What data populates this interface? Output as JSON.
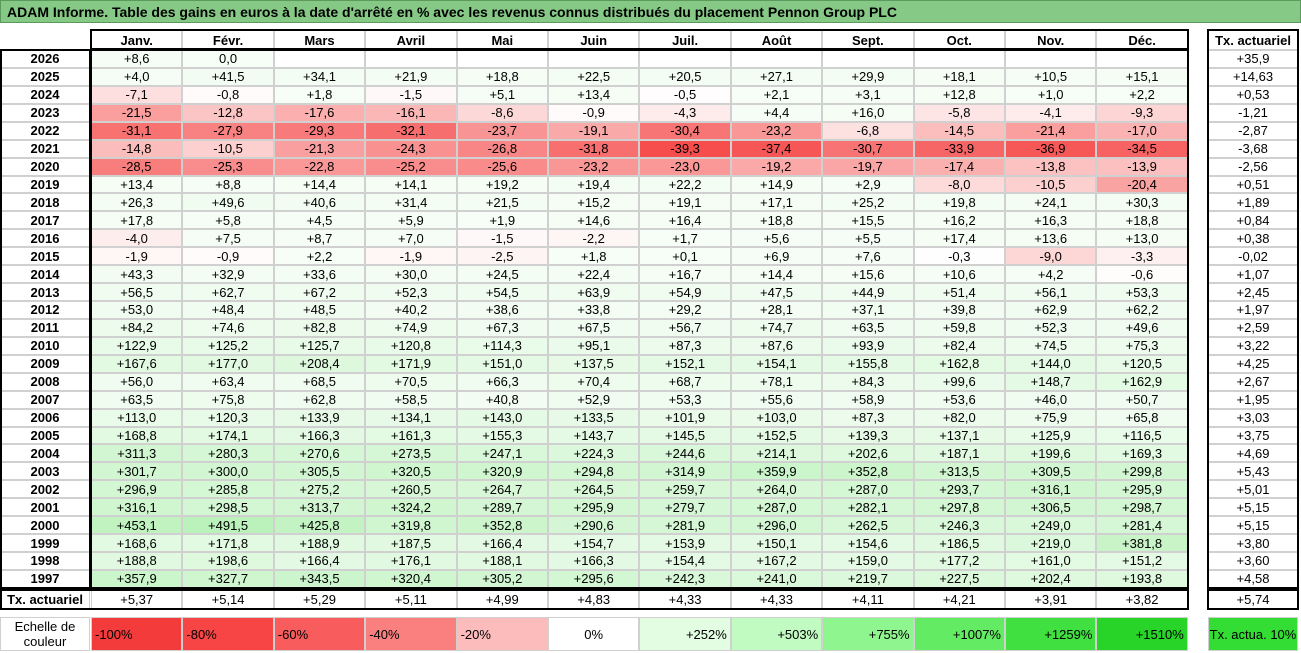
{
  "header": {
    "title": "ADAM Informe. Table des gains en euros à la date d'arrêté en % avec les revenus connus distribués du placement Pennon Group PLC"
  },
  "table": {
    "columns": [
      "Janv.",
      "Févr.",
      "Mars",
      "Avril",
      "Mai",
      "Juin",
      "Juil.",
      "Août",
      "Sept.",
      "Oct.",
      "Nov.",
      "Déc."
    ],
    "summary_column": "Tx. actuariel",
    "rows": [
      {
        "year": "2026",
        "values": [
          "+8,6",
          "0,0"
        ],
        "summary": "+35,9"
      },
      {
        "year": "2025",
        "values": [
          "+4,0",
          "+41,5",
          "+34,1",
          "+21,9",
          "+18,8",
          "+22,5",
          "+20,5",
          "+27,1",
          "+29,9",
          "+18,1",
          "+10,5",
          "+15,1"
        ],
        "summary": "+14,63"
      },
      {
        "year": "2024",
        "values": [
          "-7,1",
          "-0,8",
          "+1,8",
          "-1,5",
          "+5,1",
          "+13,4",
          "-0,5",
          "+2,1",
          "+3,1",
          "+12,8",
          "+1,0",
          "+2,2"
        ],
        "summary": "+0,53"
      },
      {
        "year": "2023",
        "values": [
          "-21,5",
          "-12,8",
          "-17,6",
          "-16,1",
          "-8,6",
          "-0,9",
          "-4,3",
          "+4,4",
          "+16,0",
          "-5,8",
          "-4,1",
          "-9,3"
        ],
        "summary": "-1,21"
      },
      {
        "year": "2022",
        "values": [
          "-31,1",
          "-27,9",
          "-29,3",
          "-32,1",
          "-23,7",
          "-19,1",
          "-30,4",
          "-23,2",
          "-6,8",
          "-14,5",
          "-21,4",
          "-17,0"
        ],
        "summary": "-2,87"
      },
      {
        "year": "2021",
        "values": [
          "-14,8",
          "-10,5",
          "-21,3",
          "-24,3",
          "-26,8",
          "-31,8",
          "-39,3",
          "-37,4",
          "-30,7",
          "-33,9",
          "-36,9",
          "-34,5"
        ],
        "summary": "-3,68"
      },
      {
        "year": "2020",
        "values": [
          "-28,5",
          "-25,3",
          "-22,8",
          "-25,2",
          "-25,6",
          "-23,2",
          "-23,0",
          "-19,2",
          "-19,7",
          "-17,4",
          "-13,8",
          "-13,9"
        ],
        "summary": "-2,56"
      },
      {
        "year": "2019",
        "values": [
          "+13,4",
          "+8,8",
          "+14,4",
          "+14,1",
          "+19,2",
          "+19,4",
          "+22,2",
          "+14,9",
          "+2,9",
          "-8,0",
          "-10,5",
          "-20,4"
        ],
        "summary": "+0,51"
      },
      {
        "year": "2018",
        "values": [
          "+26,3",
          "+49,6",
          "+40,6",
          "+31,4",
          "+21,5",
          "+15,2",
          "+19,1",
          "+17,1",
          "+25,2",
          "+19,8",
          "+24,1",
          "+30,3"
        ],
        "summary": "+1,89"
      },
      {
        "year": "2017",
        "values": [
          "+17,8",
          "+5,8",
          "+4,5",
          "+5,9",
          "+1,9",
          "+14,6",
          "+16,4",
          "+18,8",
          "+15,5",
          "+16,2",
          "+16,3",
          "+18,8"
        ],
        "summary": "+0,84"
      },
      {
        "year": "2016",
        "values": [
          "-4,0",
          "+7,5",
          "+8,7",
          "+7,0",
          "-1,5",
          "-2,2",
          "+1,7",
          "+5,6",
          "+5,5",
          "+17,4",
          "+13,6",
          "+13,0"
        ],
        "summary": "+0,38"
      },
      {
        "year": "2015",
        "values": [
          "-1,9",
          "-0,9",
          "+2,2",
          "-1,9",
          "-2,5",
          "+1,8",
          "+0,1",
          "+6,9",
          "+7,6",
          "-0,3",
          "-9,0",
          "-3,3"
        ],
        "summary": "-0,02"
      },
      {
        "year": "2014",
        "values": [
          "+43,3",
          "+32,9",
          "+33,6",
          "+30,0",
          "+24,5",
          "+22,4",
          "+16,7",
          "+14,4",
          "+15,6",
          "+10,6",
          "+4,2",
          "-0,6"
        ],
        "summary": "+1,07"
      },
      {
        "year": "2013",
        "values": [
          "+56,5",
          "+62,7",
          "+67,2",
          "+52,3",
          "+54,5",
          "+63,9",
          "+54,9",
          "+47,5",
          "+44,9",
          "+51,4",
          "+56,1",
          "+53,3"
        ],
        "summary": "+2,45"
      },
      {
        "year": "2012",
        "values": [
          "+53,0",
          "+48,4",
          "+48,5",
          "+40,2",
          "+38,6",
          "+33,8",
          "+29,2",
          "+28,1",
          "+37,1",
          "+39,8",
          "+62,9",
          "+62,2"
        ],
        "summary": "+1,97"
      },
      {
        "year": "2011",
        "values": [
          "+84,2",
          "+74,6",
          "+82,8",
          "+74,9",
          "+67,3",
          "+67,5",
          "+56,7",
          "+74,7",
          "+63,5",
          "+59,8",
          "+52,3",
          "+49,6"
        ],
        "summary": "+2,59"
      },
      {
        "year": "2010",
        "values": [
          "+122,9",
          "+125,2",
          "+125,7",
          "+120,8",
          "+114,3",
          "+95,1",
          "+87,3",
          "+87,6",
          "+93,9",
          "+82,4",
          "+74,5",
          "+75,3"
        ],
        "summary": "+3,22"
      },
      {
        "year": "2009",
        "values": [
          "+167,6",
          "+177,0",
          "+208,4",
          "+171,9",
          "+151,0",
          "+137,5",
          "+152,1",
          "+154,1",
          "+155,8",
          "+162,8",
          "+144,0",
          "+120,5"
        ],
        "summary": "+4,25"
      },
      {
        "year": "2008",
        "values": [
          "+56,0",
          "+63,4",
          "+68,5",
          "+70,5",
          "+66,3",
          "+70,4",
          "+68,7",
          "+78,1",
          "+84,3",
          "+99,6",
          "+148,7",
          "+162,9"
        ],
        "summary": "+2,67"
      },
      {
        "year": "2007",
        "values": [
          "+63,5",
          "+75,8",
          "+62,8",
          "+58,5",
          "+40,8",
          "+52,9",
          "+53,3",
          "+55,6",
          "+58,9",
          "+53,6",
          "+46,0",
          "+50,7"
        ],
        "summary": "+1,95"
      },
      {
        "year": "2006",
        "values": [
          "+113,0",
          "+120,3",
          "+133,9",
          "+134,1",
          "+143,0",
          "+133,5",
          "+101,9",
          "+103,0",
          "+87,3",
          "+82,0",
          "+75,9",
          "+65,8"
        ],
        "summary": "+3,03"
      },
      {
        "year": "2005",
        "values": [
          "+168,8",
          "+174,1",
          "+166,3",
          "+161,3",
          "+155,3",
          "+143,7",
          "+145,5",
          "+152,5",
          "+139,3",
          "+137,1",
          "+125,9",
          "+116,5"
        ],
        "summary": "+3,75"
      },
      {
        "year": "2004",
        "values": [
          "+311,3",
          "+280,3",
          "+270,6",
          "+273,5",
          "+247,1",
          "+224,3",
          "+244,6",
          "+214,1",
          "+202,6",
          "+187,1",
          "+199,6",
          "+169,3"
        ],
        "summary": "+4,69"
      },
      {
        "year": "2003",
        "values": [
          "+301,7",
          "+300,0",
          "+305,5",
          "+320,5",
          "+320,9",
          "+294,8",
          "+314,9",
          "+359,9",
          "+352,8",
          "+313,5",
          "+309,5",
          "+299,8"
        ],
        "summary": "+5,43"
      },
      {
        "year": "2002",
        "values": [
          "+296,9",
          "+285,8",
          "+275,2",
          "+260,5",
          "+264,7",
          "+264,5",
          "+259,7",
          "+264,0",
          "+287,0",
          "+293,7",
          "+316,1",
          "+295,9"
        ],
        "summary": "+5,01"
      },
      {
        "year": "2001",
        "values": [
          "+316,1",
          "+298,5",
          "+313,7",
          "+324,2",
          "+289,7",
          "+295,9",
          "+279,7",
          "+287,0",
          "+282,1",
          "+297,8",
          "+306,5",
          "+298,7"
        ],
        "summary": "+5,15"
      },
      {
        "year": "2000",
        "values": [
          "+453,1",
          "+491,5",
          "+425,8",
          "+319,8",
          "+352,8",
          "+290,6",
          "+281,9",
          "+296,0",
          "+262,5",
          "+246,3",
          "+249,0",
          "+281,4"
        ],
        "summary": "+5,15"
      },
      {
        "year": "1999",
        "values": [
          "+168,6",
          "+171,8",
          "+188,9",
          "+187,5",
          "+166,4",
          "+154,7",
          "+153,9",
          "+150,1",
          "+154,6",
          "+186,5",
          "+219,0",
          "+381,8"
        ],
        "summary": "+3,80"
      },
      {
        "year": "1998",
        "values": [
          "+188,8",
          "+198,6",
          "+166,4",
          "+176,1",
          "+188,1",
          "+166,3",
          "+154,4",
          "+167,2",
          "+159,0",
          "+177,2",
          "+161,0",
          "+151,2"
        ],
        "summary": "+3,60"
      },
      {
        "year": "1997",
        "values": [
          "+357,9",
          "+327,7",
          "+343,5",
          "+320,4",
          "+305,2",
          "+295,6",
          "+242,3",
          "+241,0",
          "+219,7",
          "+227,5",
          "+202,4",
          "+193,8"
        ],
        "summary": "+4,58"
      }
    ],
    "footer": {
      "label": "Tx. actuariel",
      "values": [
        "+5,37",
        "+5,14",
        "+5,29",
        "+5,11",
        "+4,99",
        "+4,83",
        "+4,33",
        "+4,33",
        "+4,11",
        "+4,21",
        "+3,91",
        "+3,82"
      ],
      "summary": "+5,74"
    }
  },
  "scale": {
    "label": "Echelle de couleur",
    "steps": [
      "-100%",
      "-80%",
      "-60%",
      "-40%",
      "-20%",
      "0%",
      "+252%",
      "+503%",
      "+755%",
      "+1007%",
      "+1259%",
      "+1510%"
    ],
    "summary": "Tx. actua. 10%"
  }
}
